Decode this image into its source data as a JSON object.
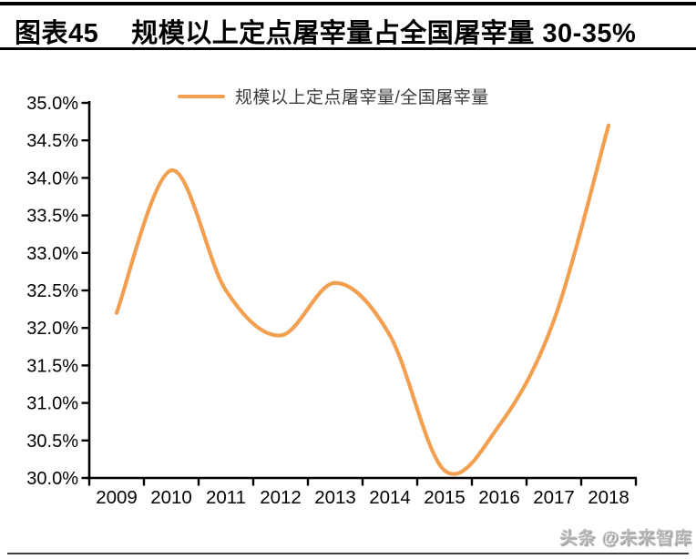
{
  "header": {
    "title_no": "图表45",
    "title_text": "规模以上定点屠宰量占全国屠宰量 30-35%"
  },
  "legend": {
    "label": "规模以上定点屠宰量/全国屠宰量"
  },
  "watermark": {
    "text": "头条 @未来智库"
  },
  "colors": {
    "line": "#F2A050",
    "axis": "#000000",
    "label": "#000000",
    "watermark": "#B6B6B6"
  },
  "chart_data": {
    "type": "line",
    "title": "规模以上定点屠宰量占全国屠宰量 30-35%",
    "categories": [
      "2009",
      "2010",
      "2011",
      "2012",
      "2013",
      "2014",
      "2015",
      "2016",
      "2017",
      "2018"
    ],
    "series": [
      {
        "name": "规模以上定点屠宰量/全国屠宰量",
        "values": [
          32.2,
          34.1,
          32.5,
          31.9,
          32.6,
          31.9,
          30.1,
          30.7,
          32.1,
          34.7
        ]
      }
    ],
    "xlabel": "",
    "ylabel": "",
    "ylim": [
      30.0,
      35.0
    ],
    "ytick_step": 0.5,
    "ytick_suffix": "%",
    "grid": false,
    "legend_position": "top",
    "smooth": true
  }
}
